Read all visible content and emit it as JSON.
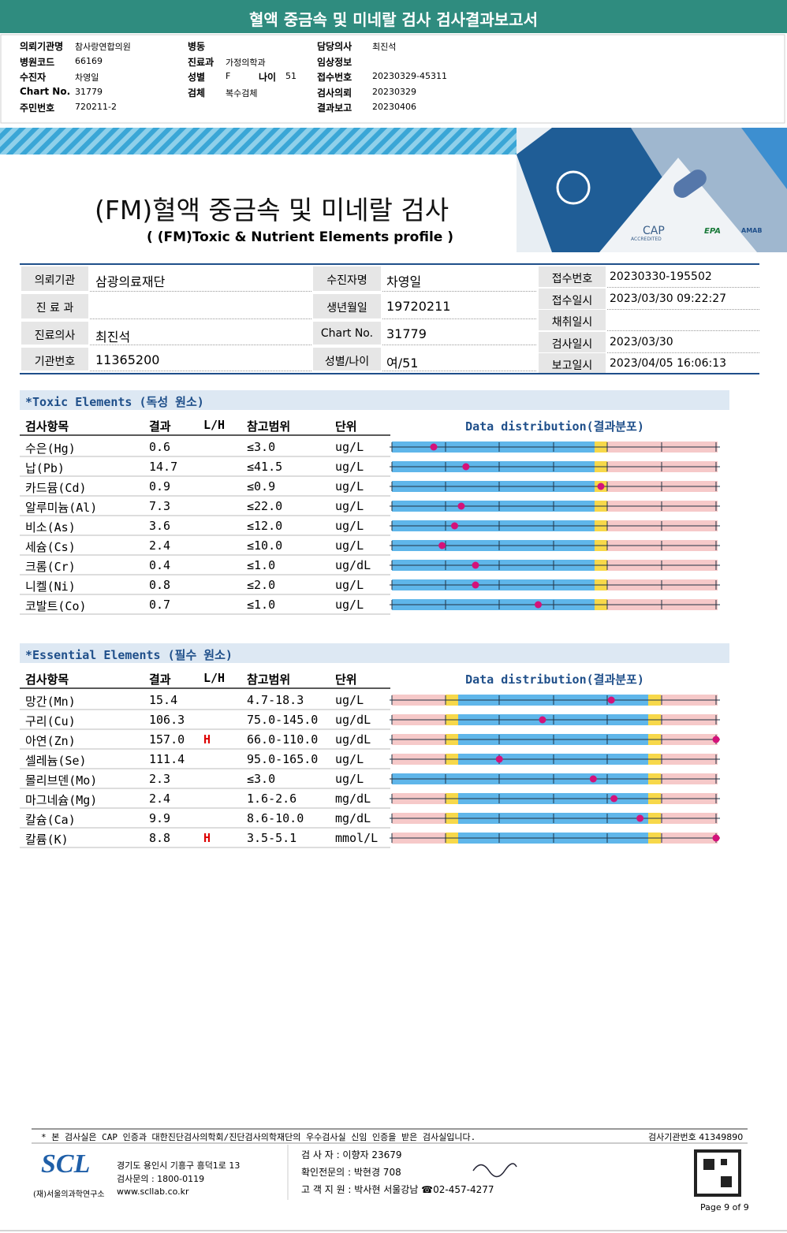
{
  "header": {
    "title": "혈액 중금속 및 미네랄 검사 검사결과보고서"
  },
  "requisition": {
    "columns": [
      [
        {
          "label": "의뢰기관명",
          "value": "참사랑연합의원"
        },
        {
          "label": "병원코드",
          "value": "66169"
        },
        {
          "label": "수진자",
          "value": "차영일"
        },
        {
          "label": "Chart No.",
          "value": "31779"
        },
        {
          "label": "주민번호",
          "value": "720211-2"
        }
      ],
      [
        {
          "label": "병동"
        },
        {
          "label": "진료과",
          "value": "가정의학과"
        },
        {
          "label": "성별",
          "value": "F",
          "label2": "나이",
          "value2": "51"
        },
        {
          "label": "검체",
          "value": "복수검체"
        }
      ],
      [
        {
          "label": "담당의사",
          "value": "최진석"
        },
        {
          "label": "임상정보"
        },
        {
          "label": "접수번호",
          "value": "20230329-45311"
        },
        {
          "label": "검사의뢰",
          "value": "20230329"
        },
        {
          "label": "결과보고",
          "value": "20230406"
        }
      ]
    ]
  },
  "banner": {
    "title": "(FM)혈액 중금속 및 미네랄 검사",
    "subtitle": "( (FM)Toxic & Nutrient Elements profile )",
    "logos": [
      "CAP",
      "ACCREDITED",
      "EPA",
      "AMAB"
    ]
  },
  "patient": {
    "left": [
      {
        "l1": "의뢰기관",
        "v1": "삼광의료재단",
        "l2": "수진자명",
        "v2": "차영일"
      },
      {
        "l1": "진 료 과",
        "l2": "생년월일",
        "v2": "19720211"
      },
      {
        "l1": "진료의사",
        "v1": "최진석",
        "l2": "Chart No.",
        "v2": "31779"
      },
      {
        "l1": "기관번호",
        "v1": "11365200",
        "l2": "성별/나이",
        "v2": "여/51"
      }
    ],
    "right": [
      {
        "label": "접수번호",
        "value": "20230330-195502"
      },
      {
        "label": "접수일시",
        "value": "2023/03/30  09:22:27"
      },
      {
        "label": "채취일시"
      },
      {
        "label": "검사일시",
        "value": "2023/03/30"
      },
      {
        "label": "보고일시",
        "value": "2023/04/05  16:06:13"
      }
    ]
  },
  "sections": [
    {
      "title": "*Toxic Elements (독성 원소)",
      "headers": [
        "검사항목",
        "결과",
        "L/H",
        "참고범위",
        "단위",
        "Data distribution(결과분포)"
      ],
      "rows": [
        {
          "item": "수은(Hg)",
          "result": "0.6",
          "range": "≤3.0",
          "unit": "ug/L"
        },
        {
          "item": "납(Pb)",
          "result": "14.7",
          "range": "≤41.5",
          "unit": "ug/L"
        },
        {
          "item": "카드뮴(Cd)",
          "result": "0.9",
          "range": "≤0.9",
          "unit": "ug/L"
        },
        {
          "item": "알루미늄(Al)",
          "result": "7.3",
          "range": "≤22.0",
          "unit": "ug/L"
        },
        {
          "item": "비소(As)",
          "result": "3.6",
          "range": "≤12.0",
          "unit": "ug/L"
        },
        {
          "item": "세슘(Cs)",
          "result": "2.4",
          "range": "≤10.0",
          "unit": "ug/L"
        },
        {
          "item": "크롬(Cr)",
          "result": "0.4",
          "range": "≤1.0",
          "unit": "ug/dL"
        },
        {
          "item": "니켈(Ni)",
          "result": "0.8",
          "range": "≤2.0",
          "unit": "ug/L"
        },
        {
          "item": "코발트(Co)",
          "result": "0.7",
          "range": "≤1.0",
          "unit": "ug/L"
        }
      ]
    },
    {
      "title": "*Essential Elements (필수 원소)",
      "headers": [
        "검사항목",
        "결과",
        "L/H",
        "참고범위",
        "단위",
        "Data distribution(결과분포)"
      ],
      "rows": [
        {
          "item": "망간(Mn)",
          "result": "15.4",
          "range": "4.7-18.3",
          "unit": "ug/L"
        },
        {
          "item": "구리(Cu)",
          "result": "106.3",
          "range": "75.0-145.0",
          "unit": "ug/dL"
        },
        {
          "item": "아연(Zn)",
          "result": "157.0",
          "flag": "H",
          "range": "66.0-110.0",
          "unit": "ug/dL"
        },
        {
          "item": "셀레늄(Se)",
          "result": "111.4",
          "range": "95.0-165.0",
          "unit": "ug/L"
        },
        {
          "item": "몰리브덴(Mo)",
          "result": "2.3",
          "range": "≤3.0",
          "unit": "ug/L"
        },
        {
          "item": "마그네슘(Mg)",
          "result": "2.4",
          "range": "1.6-2.6",
          "unit": "mg/dL"
        },
        {
          "item": "칼슘(Ca)",
          "result": "9.9",
          "range": "8.6-10.0",
          "unit": "mg/dL"
        },
        {
          "item": "칼륨(K)",
          "result": "8.8",
          "flag": "H",
          "range": "3.5-5.1",
          "unit": "mmol/L"
        }
      ]
    }
  ],
  "footer": {
    "note": "* 본 검사실은 CAP 인증과 대한진단검사의학회/진단검사의학재단의 우수검사실 신임 인증을 받은 검사실입니다.",
    "institution_no": "검사기관번호 41349890",
    "logo": "SCL",
    "org": "(재)서울의과학연구소",
    "address": "경기도 용인시 기흥구 흥덕1로 13",
    "inquiry": "검사문의 : 1800-0119",
    "web": "www.scllab.co.kr",
    "staff": [
      "검 사 자 : 이향자 23679",
      "확인전문의 : 박현경 708",
      "고 객 지 원 : 박사현 서울강남 ☎02-457-4277"
    ],
    "page": "Page 9 of 9"
  }
}
